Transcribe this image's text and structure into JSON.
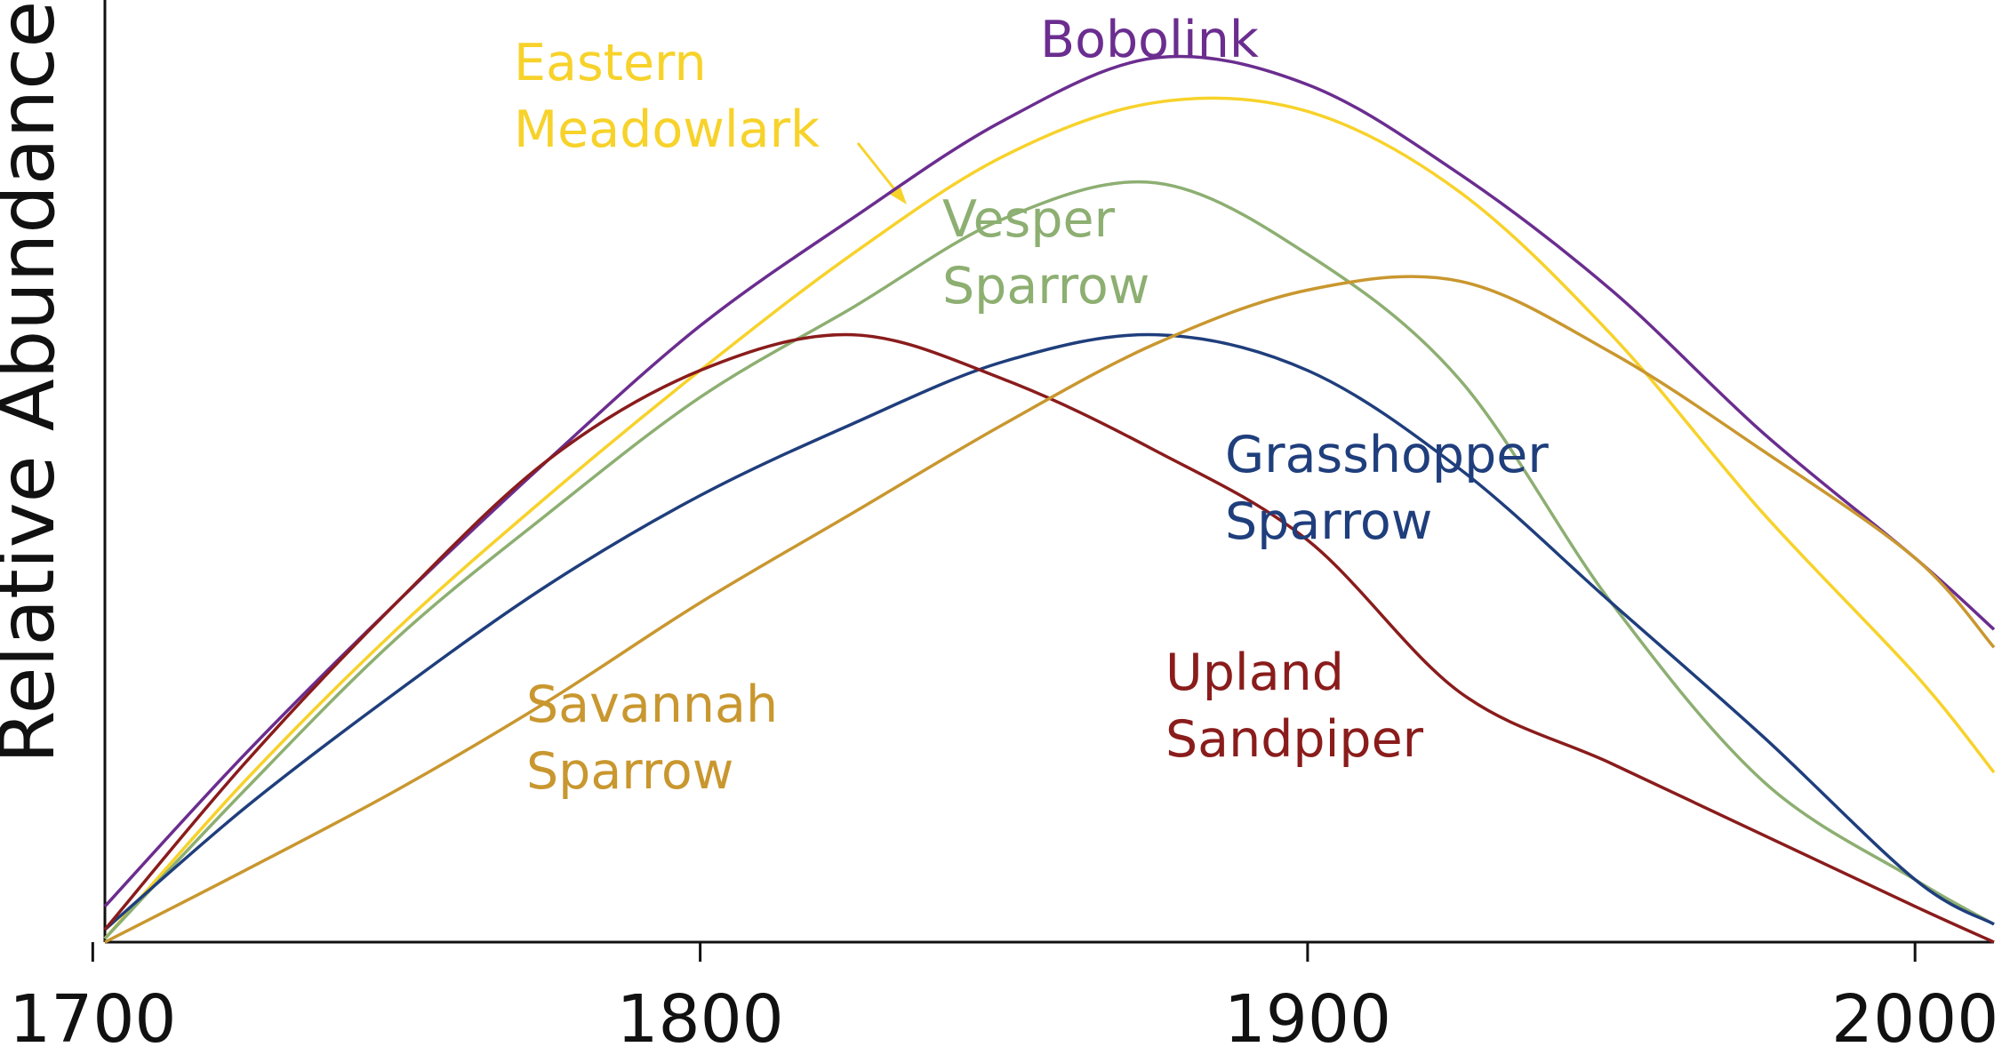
{
  "chart_data": {
    "type": "line",
    "y_label": "Relative Abundance",
    "x": [
      1702,
      1725,
      1750,
      1775,
      1800,
      1825,
      1850,
      1875,
      1900,
      1925,
      1950,
      1975,
      2000,
      2013
    ],
    "xlim": [
      1702,
      2013
    ],
    "xticks": [
      1700,
      1800,
      1900,
      2000
    ],
    "ylim": [
      0,
      100
    ],
    "series": [
      {
        "name": "Bobolink",
        "color": "#6b2d8f",
        "values": [
          4,
          21,
          38,
          54,
          69,
          81,
          92,
          99,
          96,
          86,
          73,
          57,
          43,
          35
        ]
      },
      {
        "name": "Eastern Meadowlark",
        "color": "#f7d22a",
        "values": [
          0.4,
          18,
          35,
          50,
          64,
          77,
          88,
          94,
          93,
          84,
          68,
          48,
          30,
          19
        ]
      },
      {
        "name": "Vesper Sparrow",
        "color": "#8daf72",
        "values": [
          0.4,
          17,
          34,
          48,
          61,
          71,
          81,
          85,
          77,
          63,
          38,
          18,
          7,
          2
        ]
      },
      {
        "name": "Grasshopper Sparrow",
        "color": "#1f3e7c",
        "values": [
          1.4,
          15,
          28,
          40,
          50,
          58,
          65,
          68,
          64,
          53,
          38,
          23,
          7,
          2
        ]
      },
      {
        "name": "Upland Sandpiper",
        "color": "#8a1c1c",
        "values": [
          1.4,
          20,
          38,
          54,
          64,
          68,
          63,
          55,
          45,
          28,
          20,
          12,
          4,
          0
        ]
      },
      {
        "name": "Savannah Sparrow",
        "color": "#c9972f",
        "values": [
          0,
          8,
          17,
          27,
          38,
          48,
          58,
          67,
          73,
          74,
          66,
          55,
          43,
          33
        ]
      }
    ]
  }
}
